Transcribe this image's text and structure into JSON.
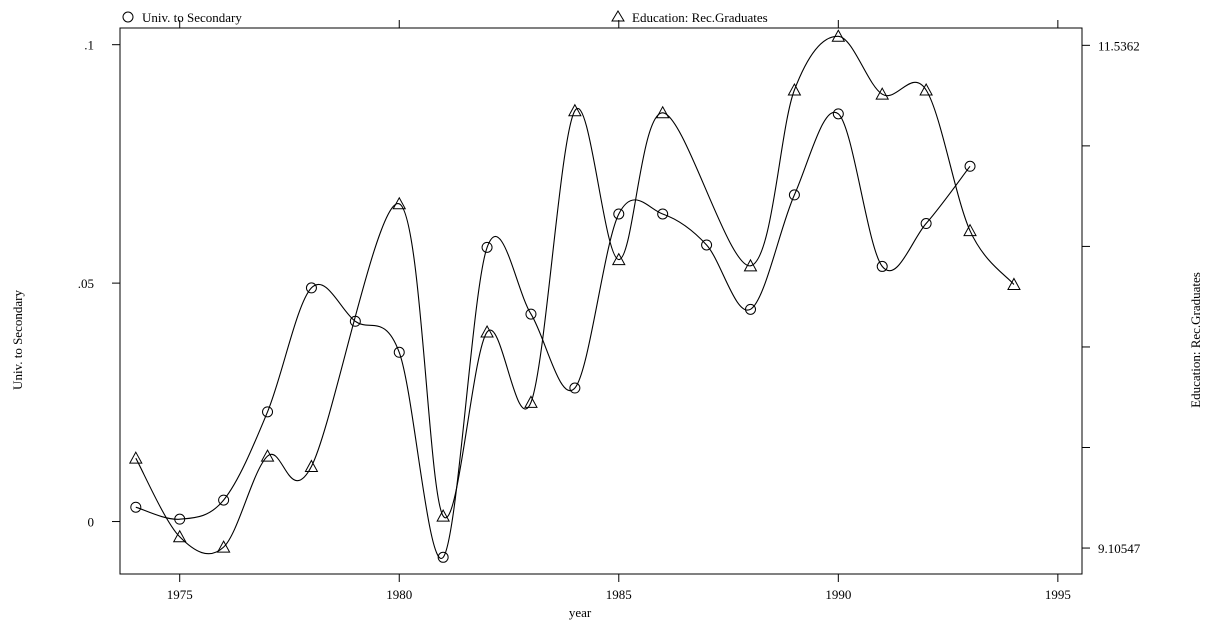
{
  "chart_data": {
    "type": "line",
    "xlabel": "year",
    "ylabel_left": "Univ. to Secondary",
    "ylabel_right": "Education: Rec.Graduates",
    "x_ticks": [
      1975,
      1980,
      1985,
      1990,
      1995
    ],
    "x_tick_labels": [
      "1975",
      "1980",
      "1985",
      "1990",
      "1995"
    ],
    "xlim": [
      1973.64,
      1995.55
    ],
    "y_left_ticks": [
      0,
      0.05,
      0.1
    ],
    "y_left_tick_labels": [
      "0",
      ".05",
      ".1"
    ],
    "y_left_lim": [
      -0.011,
      0.1035
    ],
    "y_right_ticks": [
      9.10547,
      11.5362
    ],
    "y_right_tick_labels": [
      "9.10547",
      "11.5362"
    ],
    "y_right_lim": [
      8.98,
      11.62
    ],
    "legend": [
      {
        "marker": "circle",
        "label": "Univ. to Secondary"
      },
      {
        "marker": "triangle",
        "label": "Education: Rec.Graduates"
      }
    ],
    "legend_position": "top",
    "series": [
      {
        "name": "Univ. to Secondary",
        "axis": "left",
        "marker": "circle",
        "x": [
          1974,
          1975,
          1976,
          1977,
          1978,
          1979,
          1980,
          1981,
          1982,
          1983,
          1984,
          1985,
          1986,
          1987,
          1988,
          1989,
          1990,
          1991,
          1992,
          1993
        ],
        "values": [
          0.003,
          0.0005,
          0.0045,
          0.023,
          0.049,
          0.042,
          0.0355,
          -0.0075,
          0.0575,
          0.0435,
          0.028,
          0.0645,
          0.0645,
          0.058,
          0.0445,
          0.0685,
          0.0855,
          0.0535,
          0.0625,
          0.0745
        ]
      },
      {
        "name": "Education: Rec.Graduates",
        "axis": "right",
        "marker": "triangle",
        "x": [
          1974,
          1975,
          1976,
          1977,
          1978,
          1979,
          1980,
          1981,
          1982,
          1983,
          1984,
          1985,
          1986,
          1987,
          1988,
          1989,
          1990,
          1991,
          1992,
          1993,
          1994
        ],
        "values": [
          9.54,
          9.16,
          9.11,
          9.55,
          9.5,
          null,
          10.77,
          9.26,
          10.15,
          9.81,
          11.22,
          10.5,
          11.21,
          null,
          10.47,
          11.32,
          11.58,
          11.3,
          11.32,
          10.64,
          10.38
        ]
      }
    ]
  }
}
